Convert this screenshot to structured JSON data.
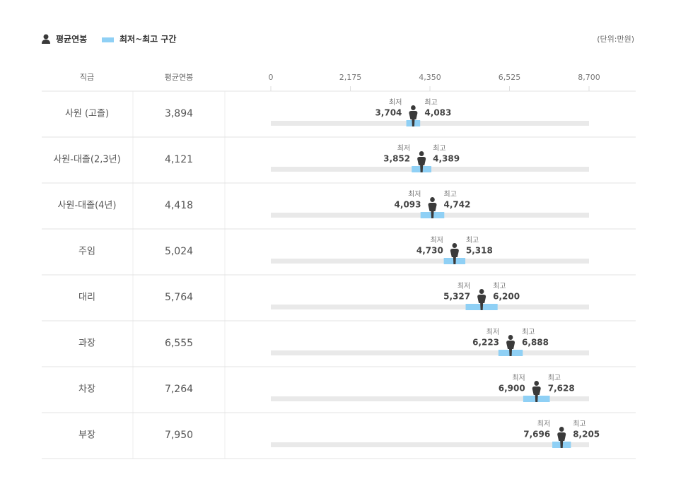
{
  "chart_data": {
    "type": "range",
    "unit": "(단위:만원)",
    "category_header": "직급",
    "categories": [
      "사원 (고졸)",
      "사원-대졸(2,3년)",
      "사원-대졸(4년)",
      "주임",
      "대리",
      "과장",
      "차장",
      "부장"
    ],
    "xlim": [
      0,
      8700
    ],
    "xticks": [
      0,
      {
        "value": 2175,
        "label": "2,175"
      },
      {
        "value": 4350,
        "label": "4,350"
      },
      {
        "value": 6525,
        "label": "6,525"
      },
      {
        "value": 8700,
        "label": "8,700"
      }
    ],
    "low_text": "최저",
    "high_text": "최고",
    "series": [
      {
        "name": "평균연봉",
        "color": "#3a3a3a",
        "values": [
          3894,
          4121,
          4418,
          5024,
          5764,
          6555,
          7264,
          7950
        ],
        "value_labels": [
          "3,894",
          "4,121",
          "4,418",
          "5,024",
          "5,764",
          "6,555",
          "7,264",
          "7,950"
        ]
      },
      {
        "name": "최저~최고 구간",
        "color": "#8fd0f5",
        "low": [
          3704,
          3852,
          4093,
          4730,
          5327,
          6223,
          6900,
          7696
        ],
        "low_labels": [
          "3,704",
          "3,852",
          "4,093",
          "4,730",
          "5,327",
          "6,223",
          "6,900",
          "7,696"
        ],
        "high": [
          4083,
          4389,
          4742,
          5318,
          6200,
          6888,
          7628,
          8205
        ],
        "high_labels": [
          "4,083",
          "4,389",
          "4,742",
          "5,318",
          "6,200",
          "6,888",
          "7,628",
          "8,205"
        ]
      }
    ]
  }
}
